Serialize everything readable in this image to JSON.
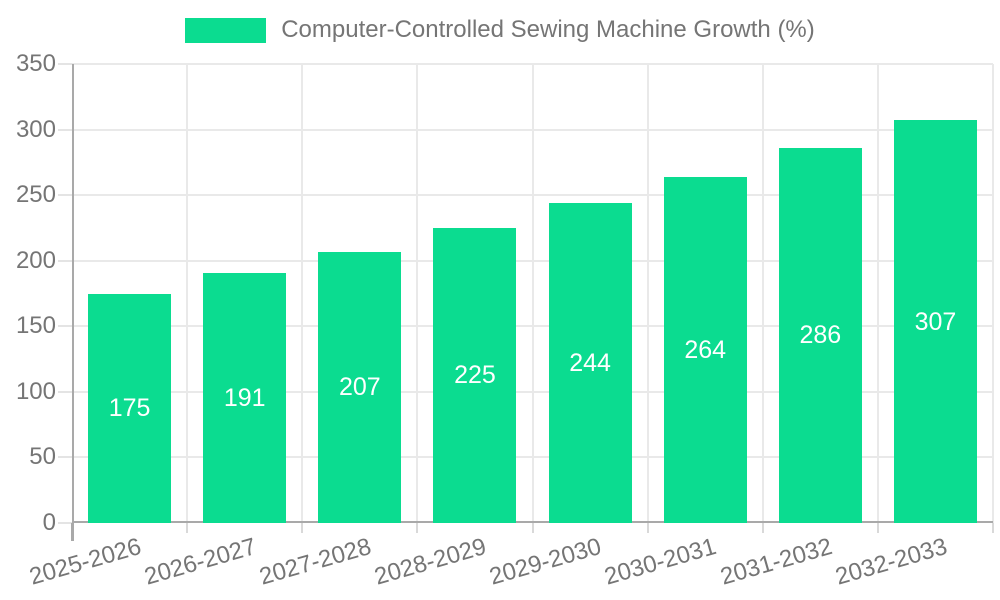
{
  "chart_data": {
    "type": "bar",
    "title": "Computer-Controlled Sewing Machine Growth (%)",
    "legend_entries": [
      "Computer-Controlled Sewing Machine Growth (%)"
    ],
    "legend_position": "top",
    "categories": [
      "2025-2026",
      "2026-2027",
      "2027-2028",
      "2028-2029",
      "2029-2030",
      "2030-2031",
      "2031-2032",
      "2032-2033"
    ],
    "values": [
      175,
      191,
      207,
      225,
      244,
      264,
      286,
      307
    ],
    "xlabel": "",
    "ylabel": "",
    "ylim": [
      0,
      350
    ],
    "ytick_step": 50,
    "yticks": [
      0,
      50,
      100,
      150,
      200,
      250,
      300,
      350
    ],
    "grid": true,
    "value_labels": "inside-center",
    "x_label_rotation_deg": -16,
    "bar_width_fraction": 0.725
  },
  "style": {
    "background": "#ffffff",
    "bar_color": "#0bdc90",
    "value_label_color": "#ffffff",
    "text_color": "#757575",
    "grid_color": "#e9e9e9",
    "axis_color": "#a9a9a9",
    "minor_tick_color": "#d9d9d9",
    "left_tick_color": "#e4e4e4"
  }
}
